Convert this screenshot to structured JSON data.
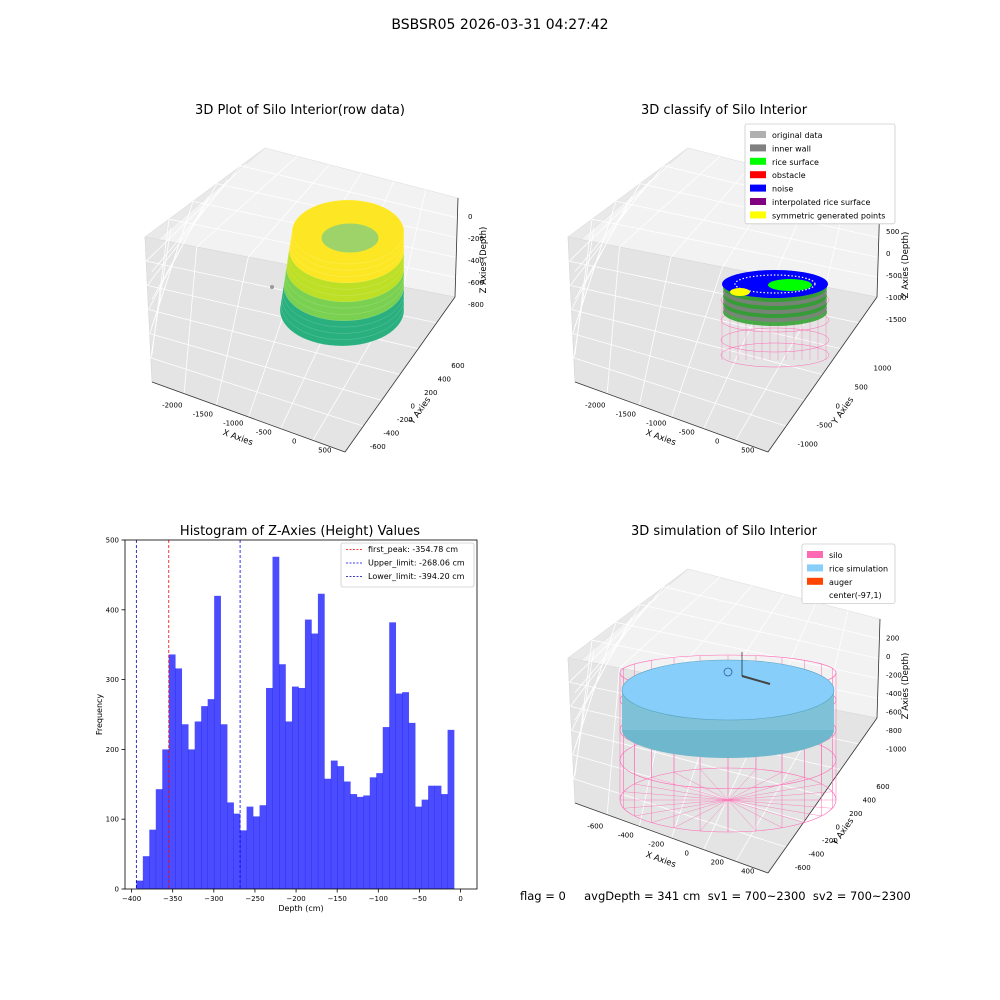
{
  "suptitle": "BSBSR05 2026-03-31 04:27:42",
  "status_text": "flag = 0     avgDepth = 341 cm  sv1 = 700~2300  sv2 = 700~2300",
  "chart_data": [
    {
      "type": "scatter3d",
      "title": "3D Plot of Silo Interior(row data)",
      "xlabel": "X Axies",
      "ylabel": "Y Axies",
      "zlabel": "Z Axies (Depth)",
      "xticks": [
        "-2000",
        "-1500",
        "-1000",
        "-500",
        "0",
        "500"
      ],
      "yticks": [
        "-600",
        "-400",
        "-200",
        "0",
        "200",
        "400",
        "600"
      ],
      "zticks": [
        "0",
        "-200",
        "-400",
        "-600",
        "-800"
      ],
      "colormap": [
        "#2ab07f",
        "#7ad151",
        "#bddf26",
        "#fde725"
      ]
    },
    {
      "type": "scatter3d",
      "title": "3D classify of Silo Interior",
      "xlabel": "X Axies",
      "ylabel": "Y Axies",
      "zlabel": "Z Axies (Depth)",
      "xticks": [
        "-2000",
        "-1500",
        "-1000",
        "-500",
        "0",
        "500"
      ],
      "yticks": [
        "-1000",
        "-500",
        "0",
        "500",
        "1000"
      ],
      "zticks": [
        "500",
        "0",
        "-500",
        "-1000",
        "-1500"
      ],
      "legend": [
        {
          "label": "original data",
          "color": "#b0b0b0"
        },
        {
          "label": "inner wall",
          "color": "#808080"
        },
        {
          "label": "rice surface",
          "color": "#00ff00"
        },
        {
          "label": "obstacle",
          "color": "#ff0000"
        },
        {
          "label": "noise",
          "color": "#0000ff"
        },
        {
          "label": "interpolated rice surface",
          "color": "#800080"
        },
        {
          "label": "symmetric generated points",
          "color": "#ffff00"
        }
      ]
    },
    {
      "type": "bar",
      "title": "Histogram of Z-Axies (Height) Values",
      "xlabel": "Depth (cm)",
      "ylabel": "Frequency",
      "xlim": [
        -408,
        20
      ],
      "ylim": [
        0,
        500
      ],
      "xticks": [
        -400,
        -350,
        -300,
        -250,
        -200,
        -150,
        -100,
        -50,
        0
      ],
      "yticks": [
        0,
        100,
        200,
        300,
        400,
        500
      ],
      "bar_color": "#0000ff",
      "bin_start": -394.2,
      "bin_width": 7.884,
      "values": [
        12,
        47,
        85,
        143,
        200,
        336,
        316,
        236,
        200,
        240,
        262,
        272,
        420,
        236,
        124,
        108,
        84,
        118,
        104,
        120,
        288,
        476,
        322,
        240,
        290,
        288,
        386,
        366,
        423,
        158,
        184,
        176,
        154,
        136,
        132,
        134,
        160,
        166,
        232,
        382,
        280,
        282,
        238,
        118,
        128,
        148,
        148,
        136,
        228
      ],
      "vlines": [
        {
          "label": "first_peak: -354.78 cm",
          "x": -354.78,
          "color": "#ff0000"
        },
        {
          "label": "Upper_limit: -268.06 cm",
          "x": -268.06,
          "color": "#0000ff"
        },
        {
          "label": "Lower_limit: -394.20 cm",
          "x": -394.2,
          "color": "#0000aa"
        }
      ]
    },
    {
      "type": "surface3d",
      "title": "3D simulation of Silo Interior",
      "xlabel": "X Axies",
      "ylabel": "Y Axies",
      "zlabel": "Z Axies (Depth)",
      "xticks": [
        "-600",
        "-400",
        "-200",
        "0",
        "200",
        "400"
      ],
      "yticks": [
        "-600",
        "-400",
        "-200",
        "0",
        "200",
        "400",
        "600"
      ],
      "zticks": [
        "200",
        "0",
        "-200",
        "-400",
        "-600",
        "-800",
        "-1000"
      ],
      "legend": [
        {
          "label": "silo",
          "color": "#ff69b4"
        },
        {
          "label": "rice simulation",
          "color": "#87cefa"
        },
        {
          "label": "auger",
          "color": "#ff4500"
        },
        {
          "label": "center(-97,1)",
          "color": ""
        }
      ]
    }
  ]
}
